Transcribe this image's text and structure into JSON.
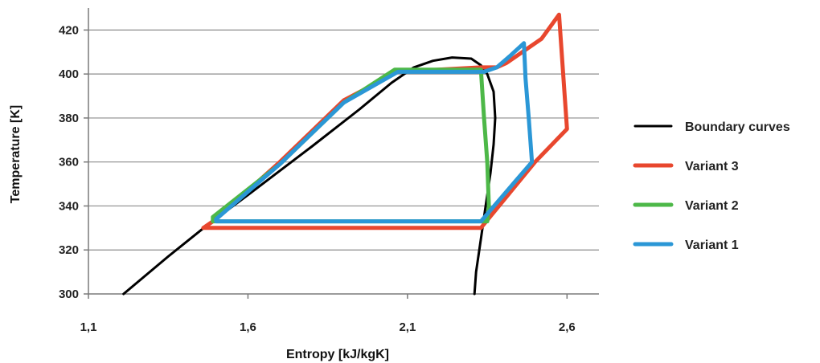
{
  "chart_data": {
    "type": "line",
    "xlabel": "Entropy [kJ/kgK]",
    "ylabel": "Temperature [K]",
    "xlim": [
      1.1,
      2.7
    ],
    "ylim": [
      300,
      430
    ],
    "x_ticks": [
      "1,1",
      "1,6",
      "2,1",
      "2,6"
    ],
    "x_tick_values": [
      1.1,
      1.6,
      2.1,
      2.6
    ],
    "y_ticks": [
      "300",
      "320",
      "340",
      "360",
      "380",
      "400",
      "420"
    ],
    "y_tick_values": [
      300,
      320,
      340,
      360,
      380,
      400,
      420
    ],
    "grid": "horizontal",
    "legend_position": "right",
    "series": [
      {
        "name": "Boundary curves",
        "color": "#000000",
        "segments": [
          [
            [
              1.21,
              300
            ],
            [
              1.35,
              317
            ],
            [
              1.47,
              331
            ],
            [
              1.6,
              345
            ],
            [
              1.8,
              367
            ],
            [
              1.95,
              384
            ],
            [
              2.05,
              396
            ],
            [
              2.12,
              403
            ],
            [
              2.18,
              406
            ],
            [
              2.24,
              407.5
            ],
            [
              2.3,
              407
            ],
            [
              2.33,
              404
            ],
            [
              2.35,
              400
            ],
            [
              2.37,
              392
            ],
            [
              2.375,
              380
            ],
            [
              2.37,
              368
            ],
            [
              2.36,
              355
            ],
            [
              2.345,
              340
            ],
            [
              2.33,
              325
            ],
            [
              2.315,
              310
            ],
            [
              2.31,
              300
            ]
          ]
        ]
      },
      {
        "name": "Variant 3",
        "color": "#e8472e",
        "segments": [
          [
            [
              1.46,
              330
            ],
            [
              2.33,
              330
            ],
            [
              2.5,
              360
            ],
            [
              2.6,
              375
            ],
            [
              2.575,
              427
            ],
            [
              2.52,
              416
            ],
            [
              2.46,
              410
            ],
            [
              2.41,
              405
            ],
            [
              2.38,
              403
            ],
            [
              2.33,
              403
            ],
            [
              2.07,
              401
            ],
            [
              1.9,
              388
            ],
            [
              1.7,
              360
            ],
            [
              1.5,
              334
            ],
            [
              1.46,
              330
            ]
          ]
        ]
      },
      {
        "name": "Variant 2",
        "color": "#4db848",
        "segments": [
          [
            [
              1.49,
              335
            ],
            [
              1.7,
              359
            ],
            [
              1.9,
              387
            ],
            [
              2.06,
              402
            ],
            [
              2.33,
              402
            ],
            [
              2.34,
              380
            ],
            [
              2.35,
              360
            ],
            [
              2.355,
              340
            ],
            [
              2.35,
              333
            ],
            [
              1.49,
              333
            ],
            [
              1.49,
              335
            ]
          ]
        ]
      },
      {
        "name": "Variant 1",
        "color": "#2b97d6",
        "segments": [
          [
            [
              1.5,
              333
            ],
            [
              2.33,
              333
            ],
            [
              2.49,
              360
            ],
            [
              2.48,
              380
            ],
            [
              2.47,
              398
            ],
            [
              2.465,
              414
            ],
            [
              2.42,
              408
            ],
            [
              2.38,
              403
            ],
            [
              2.34,
              401
            ],
            [
              2.07,
              401
            ],
            [
              1.9,
              387
            ],
            [
              1.7,
              359
            ],
            [
              1.5,
              334
            ],
            [
              1.5,
              333
            ]
          ]
        ]
      }
    ]
  }
}
